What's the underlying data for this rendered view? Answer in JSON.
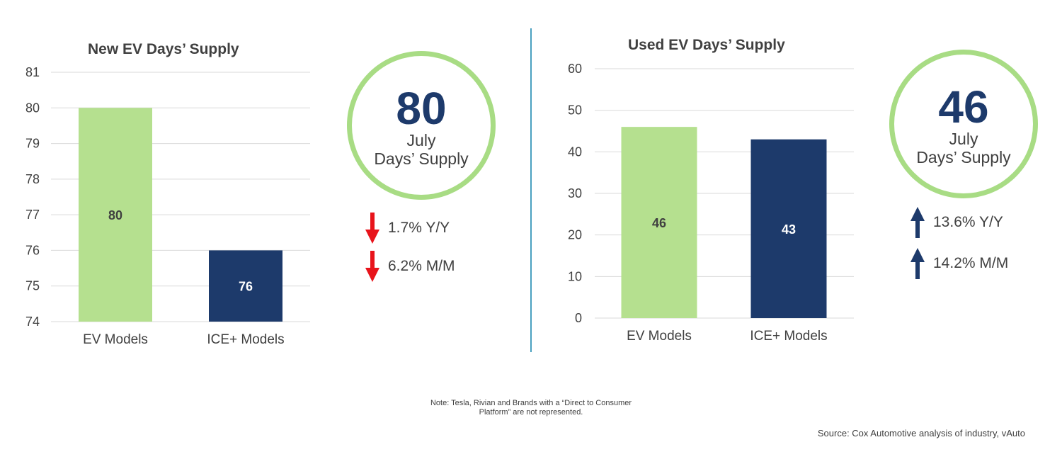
{
  "chart_data": [
    {
      "type": "bar",
      "title": "New EV Days’ Supply",
      "categories": [
        "EV Models",
        "ICE+ Models"
      ],
      "values": [
        80,
        76
      ],
      "data_labels": [
        "80",
        "76"
      ],
      "bar_colors": [
        "#b5e08f",
        "#1d3a6b"
      ],
      "label_colors": [
        "#404040",
        "#ffffff"
      ],
      "ylim": [
        74,
        81
      ],
      "yticks": [
        74,
        75,
        76,
        77,
        78,
        79,
        80,
        81
      ],
      "grid": true,
      "xlabel": "",
      "ylabel": ""
    },
    {
      "type": "bar",
      "title": "Used EV Days’ Supply",
      "categories": [
        "EV Models",
        "ICE+ Models"
      ],
      "values": [
        46,
        43
      ],
      "data_labels": [
        "46",
        "43"
      ],
      "bar_colors": [
        "#b5e08f",
        "#1d3a6b"
      ],
      "label_colors": [
        "#404040",
        "#ffffff"
      ],
      "ylim": [
        0,
        60
      ],
      "yticks": [
        0,
        10,
        20,
        30,
        40,
        50,
        60
      ],
      "grid": true,
      "xlabel": "",
      "ylabel": ""
    }
  ],
  "kpi_new": {
    "value": "80",
    "month": "July",
    "caption": "Days’ Supply",
    "changes": [
      {
        "direction": "down",
        "text": "1.7% Y/Y",
        "color": "#e8141b"
      },
      {
        "direction": "down",
        "text": "6.2% M/M",
        "color": "#e8141b"
      }
    ]
  },
  "kpi_used": {
    "value": "46",
    "month": "July",
    "caption": "Days’ Supply",
    "changes": [
      {
        "direction": "up",
        "text": "13.6% Y/Y",
        "color": "#1d3a6b"
      },
      {
        "direction": "up",
        "text": "14.2% M/M",
        "color": "#1d3a6b"
      }
    ]
  },
  "note": {
    "line1": "Note: Tesla, Rivian and Brands with a “Direct to Consumer",
    "line2": "Platform” are not represented."
  },
  "source": "Source: Cox Automotive analysis of industry, vAuto",
  "colors": {
    "accent_green": "#b5e08f",
    "circle_green": "#a8dc84",
    "navy": "#1d3a6b",
    "down_red": "#e8141b",
    "divider_blue": "#4aa0c0"
  }
}
